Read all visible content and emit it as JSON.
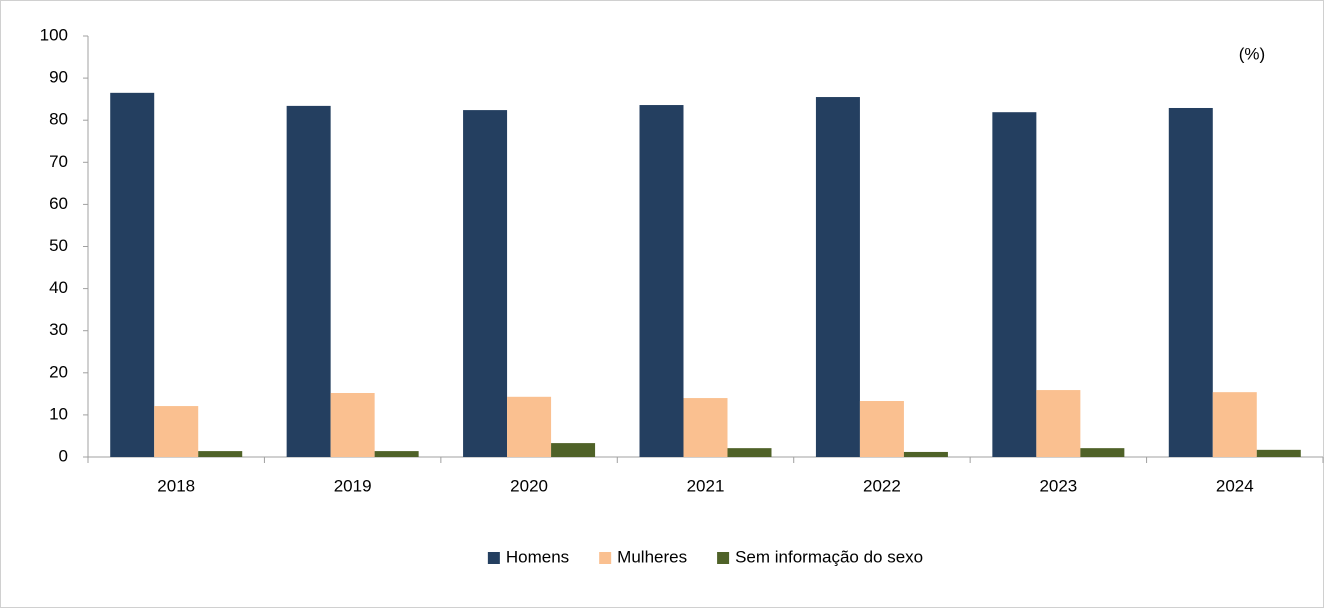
{
  "chart_data": {
    "type": "bar",
    "annotation": "(%)",
    "categories": [
      "2018",
      "2019",
      "2020",
      "2021",
      "2022",
      "2023",
      "2024"
    ],
    "series": [
      {
        "name": "Homens",
        "color": "#243f60",
        "values": [
          86.5,
          83.4,
          82.4,
          83.6,
          85.5,
          81.9,
          82.9
        ]
      },
      {
        "name": "Mulheres",
        "color": "#fac090",
        "values": [
          12.1,
          15.2,
          14.3,
          14.0,
          13.3,
          15.9,
          15.4
        ]
      },
      {
        "name": "Sem informação do sexo",
        "color": "#4f6228",
        "values": [
          1.4,
          1.4,
          3.3,
          2.1,
          1.2,
          2.1,
          1.7
        ]
      }
    ],
    "ylim": [
      0,
      100
    ],
    "yticks": [
      0,
      10,
      20,
      30,
      40,
      50,
      60,
      70,
      80,
      90,
      100
    ],
    "legend": "bottom"
  }
}
